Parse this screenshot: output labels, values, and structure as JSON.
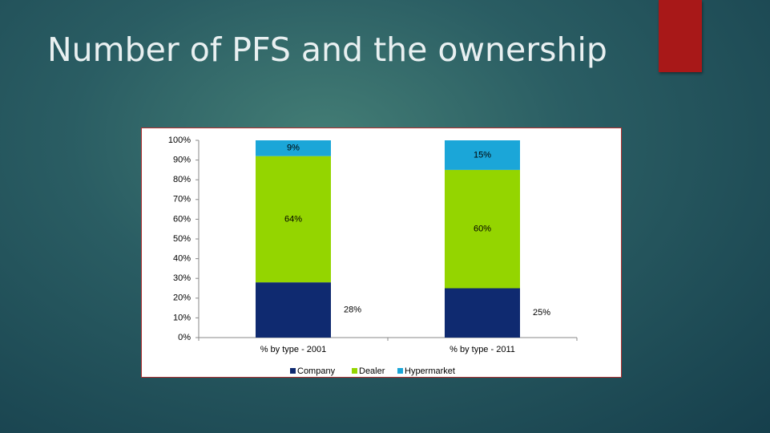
{
  "slide": {
    "title": "Number of PFS and the ownership"
  },
  "chart_data": {
    "type": "stacked-bar",
    "categories": [
      "% by type - 2001",
      "% by type - 2011"
    ],
    "series": [
      {
        "name": "Company",
        "color": "#0f2a70",
        "values": [
          28,
          25
        ],
        "value_labels": [
          "28%",
          "25%"
        ]
      },
      {
        "name": "Dealer",
        "color": "#94d500",
        "values": [
          64,
          60
        ],
        "value_labels": [
          "64%",
          "60%"
        ]
      },
      {
        "name": "Hypermarket",
        "color": "#1ba6d8",
        "values": [
          9,
          15
        ],
        "value_labels": [
          "9%",
          "15%"
        ]
      }
    ],
    "ylim": [
      0,
      100
    ],
    "yticks": [
      {
        "value": 0,
        "label": "0%"
      },
      {
        "value": 10,
        "label": "10%"
      },
      {
        "value": 20,
        "label": "20%"
      },
      {
        "value": 30,
        "label": "30%"
      },
      {
        "value": 40,
        "label": "40%"
      },
      {
        "value": 50,
        "label": "50%"
      },
      {
        "value": 60,
        "label": "60%"
      },
      {
        "value": 70,
        "label": "70%"
      },
      {
        "value": 80,
        "label": "80%"
      },
      {
        "value": 90,
        "label": "90%"
      },
      {
        "value": 100,
        "label": "100%"
      }
    ],
    "legend": "bottom"
  }
}
